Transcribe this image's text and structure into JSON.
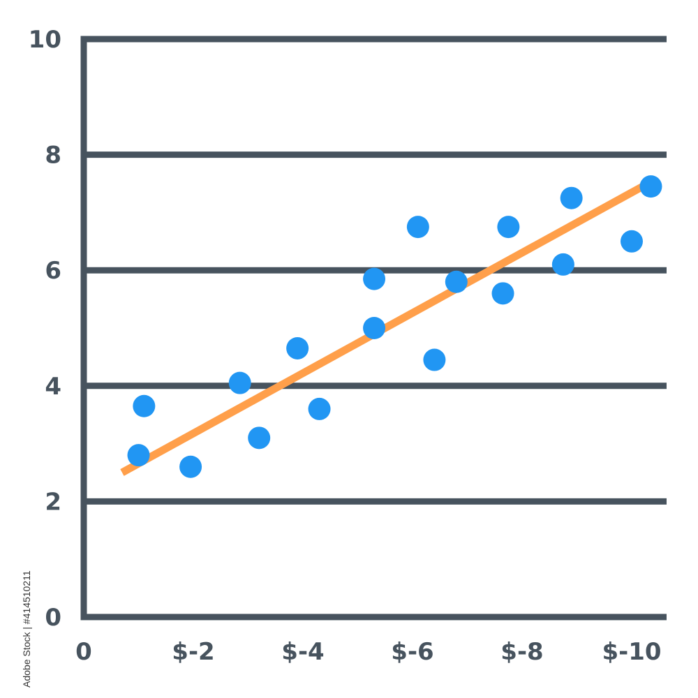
{
  "chart_data": {
    "type": "scatter",
    "title": "",
    "xlabel": "",
    "ylabel": "",
    "xlim": [
      0,
      10.4
    ],
    "ylim": [
      0,
      10
    ],
    "x_ticks": [
      0,
      2,
      4,
      6,
      8,
      10
    ],
    "x_tick_labels": [
      "0",
      "$-2",
      "$-4",
      "$-6",
      "$-8",
      "$-10"
    ],
    "y_ticks": [
      0,
      2,
      4,
      6,
      8,
      10
    ],
    "y_tick_labels": [
      "0",
      "2",
      "4",
      "6",
      "8",
      "10"
    ],
    "grid": true,
    "legend": "none",
    "series": [
      {
        "type": "scatter",
        "color": "#2196f3",
        "points": [
          {
            "x": 1.1,
            "y": 3.65
          },
          {
            "x": 1.0,
            "y": 2.8
          },
          {
            "x": 1.95,
            "y": 2.6
          },
          {
            "x": 2.85,
            "y": 4.05
          },
          {
            "x": 3.2,
            "y": 3.1
          },
          {
            "x": 3.9,
            "y": 4.65
          },
          {
            "x": 4.3,
            "y": 3.6
          },
          {
            "x": 5.3,
            "y": 5.85
          },
          {
            "x": 5.3,
            "y": 5.0
          },
          {
            "x": 6.1,
            "y": 6.75
          },
          {
            "x": 6.4,
            "y": 4.45
          },
          {
            "x": 6.8,
            "y": 5.8
          },
          {
            "x": 7.65,
            "y": 5.6
          },
          {
            "x": 7.75,
            "y": 6.75
          },
          {
            "x": 8.75,
            "y": 6.1
          },
          {
            "x": 8.9,
            "y": 7.25
          },
          {
            "x": 10.0,
            "y": 6.5
          },
          {
            "x": 10.35,
            "y": 7.45
          }
        ]
      },
      {
        "type": "line",
        "color": "#ff9f4a",
        "points": [
          {
            "x": 0.7,
            "y": 2.5
          },
          {
            "x": 10.2,
            "y": 7.45
          }
        ]
      }
    ],
    "colors": {
      "axis": "#47535e",
      "grid": "#47535e"
    }
  },
  "watermark": "Adobe Stock | #414510211"
}
